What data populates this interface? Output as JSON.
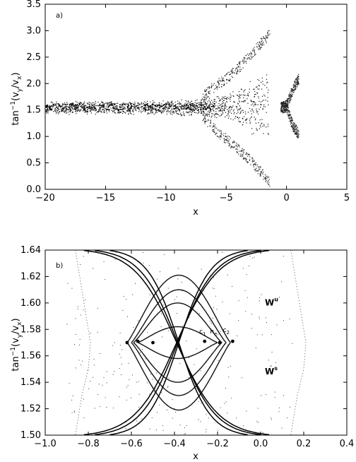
{
  "chart_data": [
    {
      "type": "scatter",
      "panel_label": "a)",
      "xlabel": "x",
      "ylabel": "tan⁻¹(v_y/v_x)",
      "xlim": [
        -20,
        5
      ],
      "ylim": [
        0.0,
        3.5
      ],
      "xticks": [
        -20,
        -15,
        -10,
        -5,
        0,
        5
      ],
      "xtick_labels": [
        "−20",
        "−15",
        "−10",
        "−5",
        "0",
        "5"
      ],
      "yticks": [
        0.0,
        0.5,
        1.0,
        1.5,
        2.0,
        2.5,
        3.0,
        3.5
      ],
      "ytick_labels": [
        "0.0",
        "0.5",
        "1.0",
        "1.5",
        "2.0",
        "2.5",
        "3.0",
        "3.5"
      ],
      "grid": false,
      "series": [
        {
          "kind": "band",
          "x": [
            -20,
            -15,
            -10,
            -8,
            -6.5,
            -5,
            -4,
            -3,
            -2,
            -1.5
          ],
          "y_low": [
            1.42,
            1.42,
            1.41,
            1.38,
            1.36,
            1.32,
            1.2,
            1.05,
            0.85,
            0.7
          ],
          "y_high": [
            1.68,
            1.68,
            1.69,
            1.72,
            1.75,
            1.83,
            1.95,
            2.1,
            2.3,
            2.45
          ]
        },
        {
          "kind": "lobe",
          "x": [
            -7,
            -6,
            -5,
            -4,
            -3,
            -2,
            -1.4
          ],
          "y_center": [
            1.75,
            1.95,
            2.1,
            2.3,
            2.55,
            2.8,
            2.95
          ]
        },
        {
          "kind": "lobe",
          "x": [
            -7,
            -6,
            -5,
            -4,
            -3,
            -2,
            -1.4
          ],
          "y_center": [
            1.4,
            1.15,
            0.95,
            0.75,
            0.55,
            0.3,
            0.15
          ]
        },
        {
          "kind": "lobe",
          "x": [
            -0.5,
            0,
            0.5,
            1.0
          ],
          "y_center": [
            1.55,
            1.6,
            1.9,
            2.1
          ]
        },
        {
          "kind": "lobe",
          "x": [
            -0.5,
            0,
            0.5,
            1.0
          ],
          "y_center": [
            1.55,
            1.55,
            1.2,
            1.05
          ]
        }
      ]
    },
    {
      "type": "scatter",
      "panel_label": "b)",
      "xlabel": "x",
      "ylabel": "tan⁻¹(v_y/v_x)",
      "xlim": [
        -1.0,
        0.4
      ],
      "ylim": [
        1.5,
        1.64
      ],
      "xticks": [
        -1.0,
        -0.8,
        -0.6,
        -0.4,
        -0.2,
        0.0,
        0.2,
        0.4
      ],
      "xtick_labels": [
        "−1.0",
        "−0.8",
        "−0.6",
        "−0.4",
        "−0.2",
        "0.0",
        "0.2",
        "0.4"
      ],
      "yticks": [
        1.5,
        1.52,
        1.54,
        1.56,
        1.58,
        1.6,
        1.62,
        1.64
      ],
      "ytick_labels": [
        "1.50",
        "1.52",
        "1.54",
        "1.56",
        "1.58",
        "1.60",
        "1.62",
        "1.64"
      ],
      "grid": false,
      "annotations": [
        {
          "text": "W",
          "sup": "u",
          "x": 0.0,
          "y": 1.598
        },
        {
          "text": "W",
          "sup": "s",
          "x": 0.0,
          "y": 1.546
        },
        {
          "text": "c",
          "sub": "1",
          "x": -0.285,
          "y": 1.577
        },
        {
          "text": "h",
          "sub": "e",
          "x": -0.235,
          "y": 1.577
        },
        {
          "text": "c",
          "sub": "2",
          "x": -0.175,
          "y": 1.578
        }
      ],
      "series": [
        {
          "kind": "lobe",
          "x_range": [
            -0.62,
            -0.14
          ],
          "y_mid": 1.57,
          "amplitude": 0.051
        },
        {
          "kind": "lobe",
          "x_range": [
            -0.6,
            -0.16
          ],
          "y_mid": 1.57,
          "amplitude": 0.04
        },
        {
          "kind": "lobe",
          "x_range": [
            -0.59,
            -0.18
          ],
          "y_mid": 1.57,
          "amplitude": 0.03
        },
        {
          "kind": "lobe",
          "x_range": [
            -0.57,
            -0.2
          ],
          "y_mid": 1.57,
          "amplitude": 0.012
        },
        {
          "kind": "manifold",
          "x_range": [
            -0.82,
            0.04
          ],
          "y_mid": 1.57
        },
        {
          "kind": "manifold",
          "x_range": [
            -0.77,
            0.0
          ],
          "y_mid": 1.57
        },
        {
          "kind": "manifold",
          "x_range": [
            -0.7,
            -0.06
          ],
          "y_mid": 1.57
        },
        {
          "kind": "points",
          "x": [
            -0.62,
            -0.57,
            -0.5,
            -0.26,
            -0.19,
            -0.13
          ],
          "y": [
            1.57,
            1.571,
            1.57,
            1.571,
            1.57,
            1.571
          ]
        },
        {
          "kind": "dotted_boundary",
          "x": [
            -0.86,
            -0.83,
            -0.8,
            -0.79,
            -0.8,
            -0.83,
            -0.86
          ],
          "y": [
            1.64,
            1.61,
            1.58,
            1.57,
            1.55,
            1.53,
            1.5
          ]
        },
        {
          "kind": "dotted_boundary",
          "x": [
            0.14,
            0.17,
            0.2,
            0.21,
            0.2,
            0.17,
            0.14
          ],
          "y": [
            1.64,
            1.61,
            1.58,
            1.57,
            1.55,
            1.53,
            1.5
          ]
        }
      ]
    }
  ]
}
